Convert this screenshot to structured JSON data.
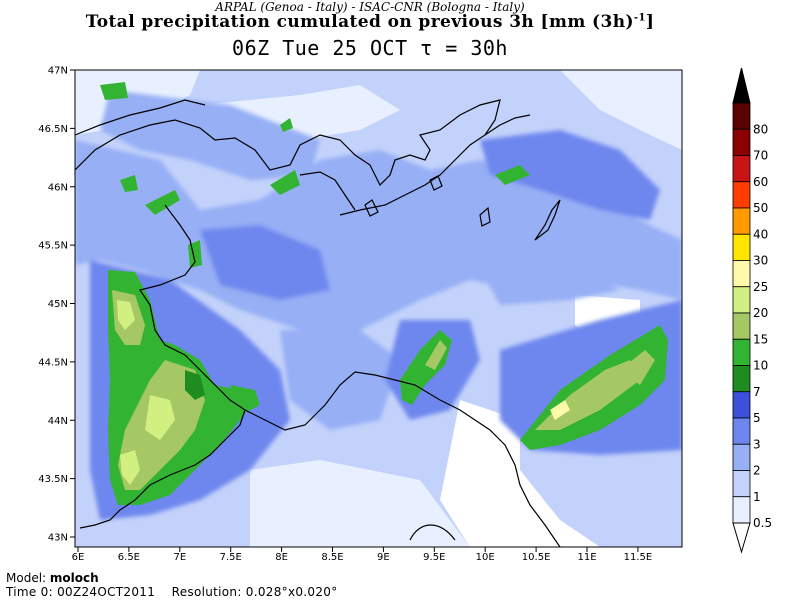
{
  "header": {
    "credits": "ARPAL (Genoa - Italy)  -  ISAC-CNR (Bologna - Italy)",
    "title": "Total precipitation cumulated on previous 3h [mm (3h)",
    "title_exponent": "-1",
    "title_end": "]",
    "subtitle": "06Z Tue 25 OCT  τ = 30h"
  },
  "map": {
    "lat_labels": [
      "47N",
      "46.5N",
      "46N",
      "45.5N",
      "45N",
      "44.5N",
      "44N",
      "43.5N",
      "43N"
    ],
    "lon_labels": [
      "6E",
      "6.5E",
      "7E",
      "7.5E",
      "8E",
      "8.5E",
      "9E",
      "9.5E",
      "10E",
      "10.5E",
      "11E",
      "11.5E"
    ]
  },
  "colorbar": {
    "labels": [
      "80",
      "70",
      "60",
      "50",
      "40",
      "30",
      "25",
      "20",
      "15",
      "10",
      "7",
      "5",
      "3",
      "2",
      "1",
      "0.5"
    ],
    "colors": [
      "#5a0000",
      "#8b0000",
      "#c81414",
      "#ff3c00",
      "#ff9b00",
      "#ffe600",
      "#fffaaa",
      "#d2f082",
      "#a5c864",
      "#32b432",
      "#1e8c1e",
      "#3c50dc",
      "#6e87ee",
      "#96aff5",
      "#c3d2fa",
      "#e8f0ff"
    ]
  },
  "footer": {
    "model_label": "Model:",
    "model_value": "moloch",
    "time_label": "Time 0:",
    "time_value": "00Z24OCT2011",
    "resolution_label": "Resolution:",
    "resolution_value": "0.028°x0.020°"
  }
}
